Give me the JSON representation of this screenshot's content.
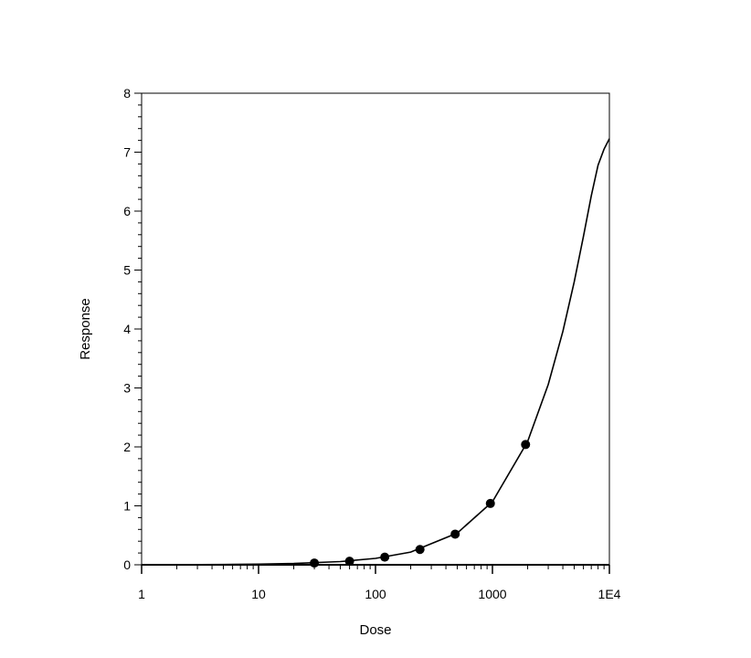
{
  "chart_data": {
    "type": "scatter",
    "title": "",
    "xlabel": "Dose",
    "ylabel": "Response",
    "xscale": "log",
    "xlim": [
      1,
      10000
    ],
    "ylim": [
      0,
      8
    ],
    "grid": false,
    "legend": "none",
    "x_ticks": [
      {
        "value": 1,
        "label": "1"
      },
      {
        "value": 10,
        "label": "10"
      },
      {
        "value": 100,
        "label": "100"
      },
      {
        "value": 1000,
        "label": "1000"
      },
      {
        "value": 10000,
        "label": "1E4"
      }
    ],
    "y_ticks": [
      {
        "value": 0,
        "label": "0"
      },
      {
        "value": 1,
        "label": "1"
      },
      {
        "value": 2,
        "label": "2"
      },
      {
        "value": 3,
        "label": "3"
      },
      {
        "value": 4,
        "label": "4"
      },
      {
        "value": 5,
        "label": "5"
      },
      {
        "value": 6,
        "label": "6"
      },
      {
        "value": 7,
        "label": "7"
      },
      {
        "value": 8,
        "label": "8"
      }
    ],
    "series": [
      {
        "kind": "points",
        "color": "#000000",
        "x": [
          30,
          60,
          120,
          240,
          480,
          960,
          1920
        ],
        "y": [
          0.03,
          0.06,
          0.13,
          0.26,
          0.52,
          1.04,
          2.04
        ]
      },
      {
        "kind": "fitted-curve",
        "color": "#000000",
        "x": [
          1,
          2,
          5,
          10,
          20,
          50,
          100,
          200,
          500,
          1000,
          2000,
          3000,
          4000,
          5000,
          6000,
          7000,
          8000,
          9000,
          10000
        ],
        "y": [
          0.001,
          0.002,
          0.005,
          0.011,
          0.022,
          0.054,
          0.108,
          0.216,
          0.538,
          1.07,
          2.09,
          3.06,
          3.96,
          4.8,
          5.57,
          6.26,
          6.78,
          7.05,
          7.23
        ]
      }
    ]
  }
}
